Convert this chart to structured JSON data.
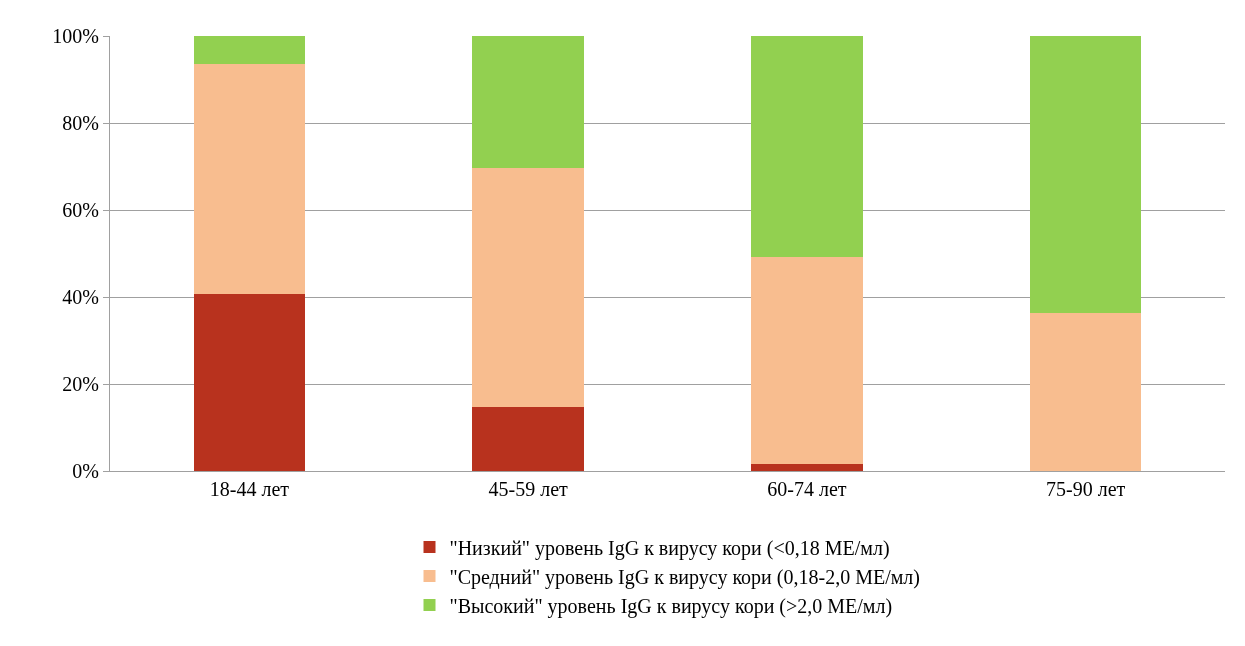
{
  "chart_data": {
    "type": "bar",
    "stacked": true,
    "categories": [
      "18-44 лет",
      "45-59 лет",
      "60-74 лет",
      "75-90 лет"
    ],
    "series": [
      {
        "name": "\"Низкий\" уровень IgG к вирусу кори (<0,18 МЕ/мл)",
        "color": "#b8321e",
        "values": [
          40.7,
          14.8,
          1.5,
          0
        ]
      },
      {
        "name": "\"Средний\" уровень IgG к вирусу кори (0,18-2,0 МЕ/мл)",
        "color": "#f8bd8f",
        "values": [
          52.9,
          54.8,
          47.8,
          36.3
        ]
      },
      {
        "name": "\"Высокий\" уровень IgG к вирусу кори (>2,0 МЕ/мл)",
        "color": "#92d050",
        "values": [
          6.4,
          30.4,
          50.7,
          63.7
        ]
      }
    ],
    "ylim": [
      0,
      100
    ],
    "yticks": [
      {
        "value": 0,
        "label": "0%"
      },
      {
        "value": 20,
        "label": "20%"
      },
      {
        "value": 40,
        "label": "40%"
      },
      {
        "value": 60,
        "label": "60%"
      },
      {
        "value": 80,
        "label": "80%"
      },
      {
        "value": 100,
        "label": "100%"
      }
    ],
    "grid": "y",
    "legend": "bottom"
  }
}
